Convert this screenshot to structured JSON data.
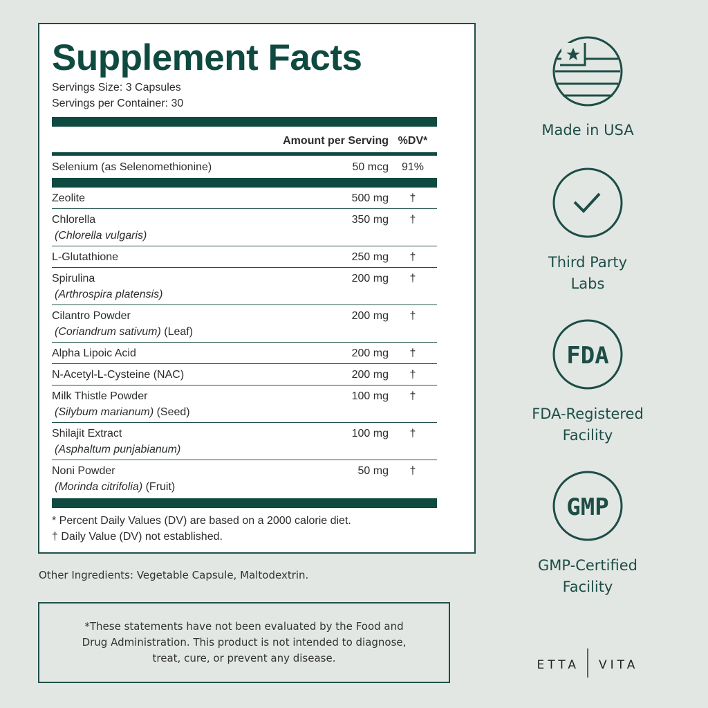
{
  "facts": {
    "title": "Supplement Facts",
    "serving_size": "Servings Size: 3 Capsules",
    "servings_per_container": "Servings per Container: 30",
    "header": {
      "amount": "Amount per Serving",
      "dv": "%DV*"
    },
    "featured": {
      "name": "Selenium (as Selenomethionine)",
      "amount": "50 mcg",
      "dv": "91%"
    },
    "rows": [
      {
        "name": "Zeolite",
        "amount": "500 mg",
        "dv": "†"
      },
      {
        "name": "Chlorella",
        "latin": "(Chlorella vulgaris)",
        "amount": "350 mg",
        "dv": "†"
      },
      {
        "name": "L-Glutathione",
        "amount": "250 mg",
        "dv": "†"
      },
      {
        "name": "Spirulina",
        "latin": "(Arthrospira platensis)",
        "amount": "200 mg",
        "dv": "†"
      },
      {
        "name": "Cilantro Powder",
        "latin": "(Coriandrum sativum)",
        "part": "(Leaf)",
        "amount": "200 mg",
        "dv": "†"
      },
      {
        "name": "Alpha Lipoic Acid",
        "amount": "200 mg",
        "dv": "†"
      },
      {
        "name": "N-Acetyl-L-Cysteine (NAC)",
        "amount": "200 mg",
        "dv": "†"
      },
      {
        "name": "Milk Thistle Powder",
        "latin": "(Silybum marianum)",
        "part": "(Seed)",
        "amount": "100 mg",
        "dv": "†"
      },
      {
        "name": "Shilajit Extract",
        "latin": "(Asphaltum punjabianum)",
        "amount": "100 mg",
        "dv": "†"
      },
      {
        "name": "Noni Powder",
        "latin": "(Morinda citrifolia)",
        "part": "(Fruit)",
        "amount": "50 mg",
        "dv": "†"
      }
    ],
    "footnotes": [
      "* Percent Daily Values (DV) are based on a 2000 calorie diet.",
      "† Daily Value (DV) not established."
    ]
  },
  "other_ingredients": "Other Ingredients: Vegetable Capsule, Maltodextrin.",
  "disclaimer": "*These statements have not been evaluated by the Food and Drug Administration. This product is not intended to diagnose, treat, cure, or prevent any disease.",
  "badges": [
    {
      "label_lines": [
        "Made in USA"
      ]
    },
    {
      "label_lines": [
        "Third Party",
        "Labs"
      ]
    },
    {
      "icon_text": "FDA",
      "label_lines": [
        "FDA-Registered",
        "Facility"
      ]
    },
    {
      "icon_text": "GMP",
      "label_lines": [
        "GMP-Certified",
        "Facility"
      ]
    }
  ],
  "brand": [
    "ETTA",
    "VITA"
  ]
}
